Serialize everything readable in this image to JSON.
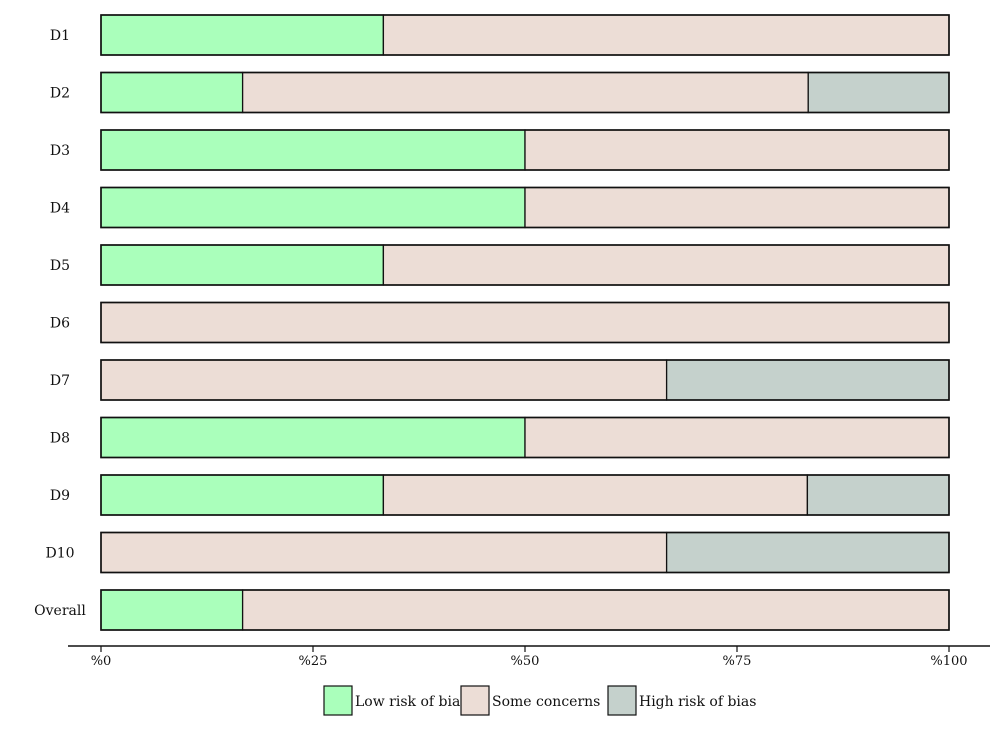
{
  "chart_data": {
    "type": "bar",
    "orientation": "horizontal",
    "stacked": true,
    "categories": [
      "D1",
      "D2",
      "D3",
      "D4",
      "D5",
      "D6",
      "D7",
      "D8",
      "D9",
      "D10",
      "Overall"
    ],
    "series": [
      {
        "name": "Low risk of bias",
        "color": "#aaffbb",
        "values": [
          33.3,
          16.7,
          50,
          50,
          33.3,
          0,
          0,
          50,
          33.3,
          0,
          16.7
        ]
      },
      {
        "name": "Some concerns",
        "color": "#ecddd6",
        "values": [
          66.7,
          66.7,
          50,
          50,
          66.7,
          100,
          66.7,
          50,
          50,
          66.7,
          83.3
        ]
      },
      {
        "name": "High risk of bias",
        "color": "#c5d1cc",
        "values": [
          0,
          16.6,
          0,
          0,
          0,
          0,
          33.3,
          0,
          16.7,
          33.3,
          0
        ]
      }
    ],
    "x_ticks": [
      "%0",
      "%25",
      "%50",
      "%75",
      "%100"
    ],
    "xlim": [
      0,
      100
    ],
    "title": "",
    "xlabel": "",
    "ylabel": "",
    "grid": false,
    "legend_position": "bottom-center"
  }
}
